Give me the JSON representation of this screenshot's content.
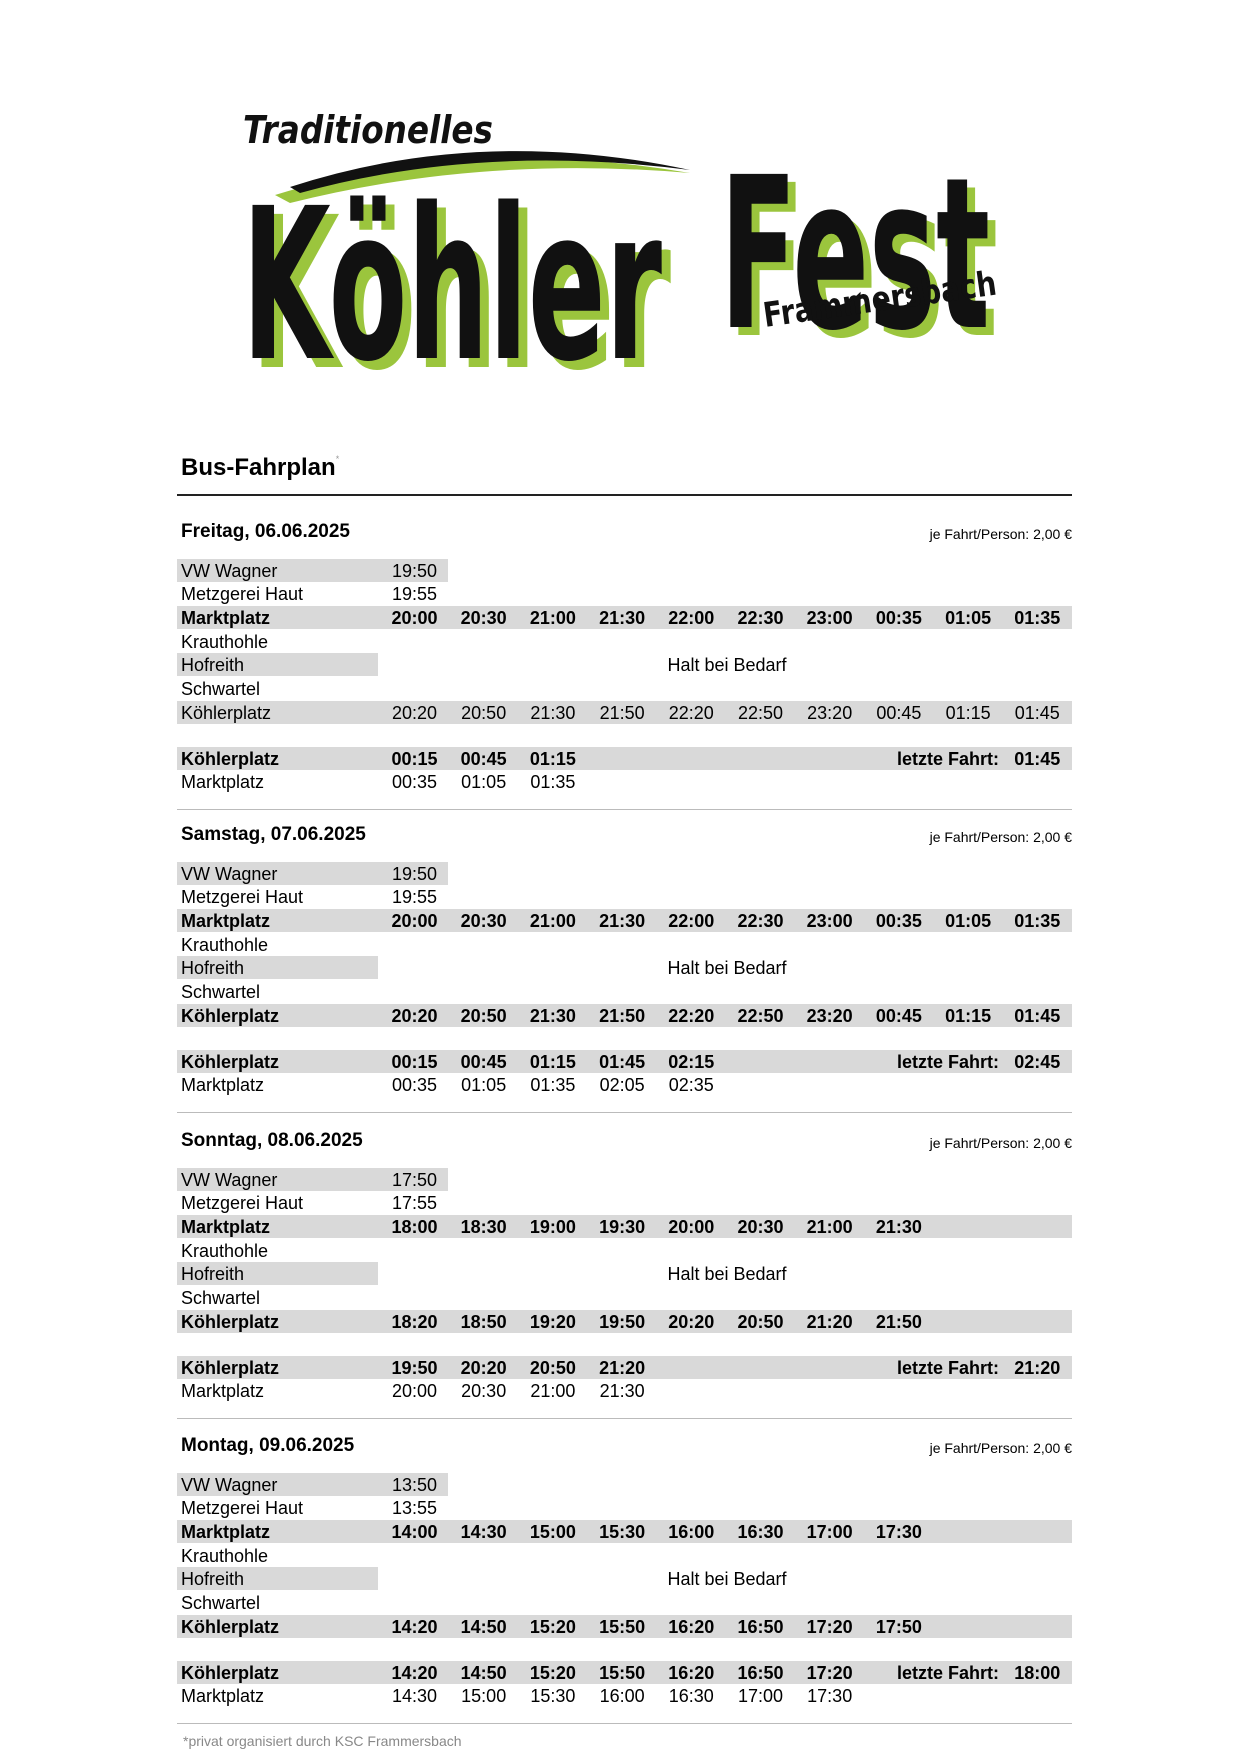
{
  "logo": {
    "line1": "Traditionelles",
    "word1": "Köhler",
    "word2": "Fest",
    "place": "Frammersbach",
    "colors": {
      "green": "#9bc53d",
      "black": "#111111"
    }
  },
  "title": "Bus-Fahrplan",
  "title_mark": "*",
  "footer": "*privat organisiert durch KSC Frammersbach",
  "note_text": "Halt bei Bedarf",
  "last_label": "letzte Fahrt:",
  "sections": [
    {
      "heading": "Freitag, 06.06.2025",
      "price": "je Fahrt/Person: 2,00 €",
      "outbound": [
        {
          "stop": "VW Wagner",
          "times": [
            "19:50"
          ],
          "bold": false
        },
        {
          "stop": "Metzgerei Haut",
          "times": [
            "19:55"
          ],
          "bold": false
        },
        {
          "stop": "Marktplatz",
          "times": [
            "20:00",
            "20:30",
            "21:00",
            "21:30",
            "22:00",
            "22:30",
            "23:00",
            "00:35",
            "01:05",
            "01:35"
          ],
          "bold": true
        },
        {
          "stop": "Krauthohle",
          "times": [],
          "bold": false
        },
        {
          "stop": "Hofreith",
          "times": [],
          "bold": false
        },
        {
          "stop": "Schwartel",
          "times": [],
          "bold": false
        },
        {
          "stop": "Köhlerplatz",
          "times": [
            "20:20",
            "20:50",
            "21:30",
            "21:50",
            "22:20",
            "22:50",
            "23:20",
            "00:45",
            "01:15",
            "01:45"
          ],
          "bold": false
        }
      ],
      "return": [
        {
          "stop": "Köhlerplatz",
          "times": [
            "00:15",
            "00:45",
            "01:15"
          ],
          "bold": true,
          "last": "01:45"
        },
        {
          "stop": "Marktplatz",
          "times": [
            "00:35",
            "01:05",
            "01:35"
          ],
          "bold": false
        }
      ]
    },
    {
      "heading": "Samstag, 07.06.2025",
      "price": "je Fahrt/Person: 2,00 €",
      "outbound": [
        {
          "stop": "VW Wagner",
          "times": [
            "19:50"
          ],
          "bold": false
        },
        {
          "stop": "Metzgerei Haut",
          "times": [
            "19:55"
          ],
          "bold": false
        },
        {
          "stop": "Marktplatz",
          "times": [
            "20:00",
            "20:30",
            "21:00",
            "21:30",
            "22:00",
            "22:30",
            "23:00",
            "00:35",
            "01:05",
            "01:35"
          ],
          "bold": true
        },
        {
          "stop": "Krauthohle",
          "times": [],
          "bold": false
        },
        {
          "stop": "Hofreith",
          "times": [],
          "bold": false
        },
        {
          "stop": "Schwartel",
          "times": [],
          "bold": false
        },
        {
          "stop": "Köhlerplatz",
          "times": [
            "20:20",
            "20:50",
            "21:30",
            "21:50",
            "22:20",
            "22:50",
            "23:20",
            "00:45",
            "01:15",
            "01:45"
          ],
          "bold": true
        }
      ],
      "return": [
        {
          "stop": "Köhlerplatz",
          "times": [
            "00:15",
            "00:45",
            "01:15",
            "01:45",
            "02:15"
          ],
          "bold": true,
          "last": "02:45"
        },
        {
          "stop": "Marktplatz",
          "times": [
            "00:35",
            "01:05",
            "01:35",
            "02:05",
            "02:35"
          ],
          "bold": false
        }
      ]
    },
    {
      "heading": "Sonntag, 08.06.2025",
      "price": "je Fahrt/Person: 2,00 €",
      "outbound": [
        {
          "stop": "VW Wagner",
          "times": [
            "17:50"
          ],
          "bold": false
        },
        {
          "stop": "Metzgerei Haut",
          "times": [
            "17:55"
          ],
          "bold": false
        },
        {
          "stop": "Marktplatz",
          "times": [
            "18:00",
            "18:30",
            "19:00",
            "19:30",
            "20:00",
            "20:30",
            "21:00",
            "21:30"
          ],
          "bold": true
        },
        {
          "stop": "Krauthohle",
          "times": [],
          "bold": false
        },
        {
          "stop": "Hofreith",
          "times": [],
          "bold": false
        },
        {
          "stop": "Schwartel",
          "times": [],
          "bold": false
        },
        {
          "stop": "Köhlerplatz",
          "times": [
            "18:20",
            "18:50",
            "19:20",
            "19:50",
            "20:20",
            "20:50",
            "21:20",
            "21:50"
          ],
          "bold": true
        }
      ],
      "return": [
        {
          "stop": "Köhlerplatz",
          "times": [
            "19:50",
            "20:20",
            "20:50",
            "21:20"
          ],
          "bold": true,
          "last": "21:20"
        },
        {
          "stop": "Marktplatz",
          "times": [
            "20:00",
            "20:30",
            "21:00",
            "21:30"
          ],
          "bold": false
        }
      ]
    },
    {
      "heading": "Montag, 09.06.2025",
      "price": "je Fahrt/Person: 2,00 €",
      "outbound": [
        {
          "stop": "VW Wagner",
          "times": [
            "13:50"
          ],
          "bold": false
        },
        {
          "stop": "Metzgerei Haut",
          "times": [
            "13:55"
          ],
          "bold": false
        },
        {
          "stop": "Marktplatz",
          "times": [
            "14:00",
            "14:30",
            "15:00",
            "15:30",
            "16:00",
            "16:30",
            "17:00",
            "17:30"
          ],
          "bold": true
        },
        {
          "stop": "Krauthohle",
          "times": [],
          "bold": false
        },
        {
          "stop": "Hofreith",
          "times": [],
          "bold": false
        },
        {
          "stop": "Schwartel",
          "times": [],
          "bold": false
        },
        {
          "stop": "Köhlerplatz",
          "times": [
            "14:20",
            "14:50",
            "15:20",
            "15:50",
            "16:20",
            "16:50",
            "17:20",
            "17:50"
          ],
          "bold": true
        }
      ],
      "return": [
        {
          "stop": "Köhlerplatz",
          "times": [
            "14:20",
            "14:50",
            "15:20",
            "15:50",
            "16:20",
            "16:50",
            "17:20"
          ],
          "bold": true,
          "last": "18:00"
        },
        {
          "stop": "Marktplatz",
          "times": [
            "14:30",
            "15:00",
            "15:30",
            "16:00",
            "16:30",
            "17:00",
            "17:30"
          ],
          "bold": false
        }
      ]
    }
  ]
}
